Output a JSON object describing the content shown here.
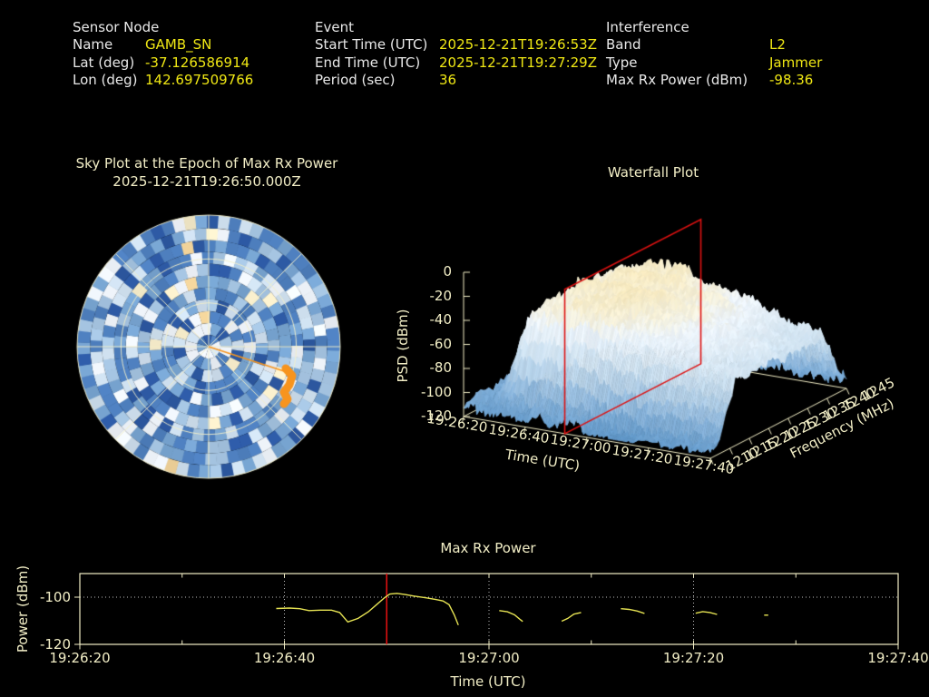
{
  "header": {
    "sensor": {
      "title": "Sensor Node",
      "rows": [
        {
          "label": "Name",
          "value": "GAMB_SN"
        },
        {
          "label": "Lat (deg)",
          "value": "-37.126586914"
        },
        {
          "label": "Lon (deg)",
          "value": "142.697509766"
        }
      ]
    },
    "event": {
      "title": "Event",
      "rows": [
        {
          "label": "Start Time (UTC)",
          "value": "2025-12-21T19:26:53Z"
        },
        {
          "label": "End Time (UTC)",
          "value": "2025-12-21T19:27:29Z"
        },
        {
          "label": "Period (sec)",
          "value": "36"
        }
      ]
    },
    "interference": {
      "title": "Interference",
      "rows": [
        {
          "label": "Band",
          "value": "L2"
        },
        {
          "label": "Type",
          "value": "Jammer"
        },
        {
          "label": "Max Rx Power (dBm)",
          "value": "-98.36"
        }
      ]
    }
  },
  "colors": {
    "label_text": "#e9e9e9",
    "value_text": "#efe714",
    "plot_text": "#f2eec6",
    "series_line": "#e6e353",
    "epoch_line": "#dd1111",
    "grid_dotted": "#c0c0c0"
  },
  "chart_data": [
    {
      "type": "heatmap",
      "projection": "polar",
      "title": "Sky Plot at the Epoch of Max Rx Power",
      "subtitle": "2025-12-21T19:26:50.000Z",
      "grid": {
        "rings": 3,
        "spoke_step_deg": 45
      },
      "palette": [
        "#2d59a3",
        "#4e7fbe",
        "#78a5d2",
        "#a5c4e1",
        "#cfe0ef",
        "#eef3f9",
        "#f6ecca"
      ],
      "marker": {
        "shape": "trace-from-center",
        "azimuth_deg": 108,
        "radius_frac": 0.62,
        "color": "#f7941e"
      },
      "note": "azimuth/elevation power mosaic, values unlabeled"
    },
    {
      "type": "surface",
      "title": "Waterfall Plot",
      "xlabel": "Time (UTC)",
      "ylabel": "Frequency (MHz)",
      "zlabel": "PSD (dBm)",
      "x_ticks": [
        "19:26:20",
        "19:26:40",
        "19:27:00",
        "19:27:20",
        "19:27:40"
      ],
      "y_ticks": [
        "1210",
        "1215",
        "1220",
        "1225",
        "1230",
        "1235",
        "1240",
        "1245"
      ],
      "z_ticks": [
        "0",
        "-20",
        "-40",
        "-60",
        "-80",
        "-100",
        "-120"
      ],
      "ylim": [
        1210,
        1245
      ],
      "zlim": [
        -120,
        0
      ],
      "slice_marker": {
        "time": "19:26:50",
        "time_frac": 0.41,
        "color": "#dd1111"
      }
    },
    {
      "type": "line",
      "title": "Max Rx Power",
      "xlabel": "Time (UTC)",
      "ylabel": "Power (dBm)",
      "x_ticks": [
        "19:26:20",
        "19:26:40",
        "19:27:00",
        "19:27:20",
        "19:27:40"
      ],
      "x_domain_sec": [
        0,
        80
      ],
      "y_ticks": [
        -100,
        -120
      ],
      "ylim": [
        -120,
        -90
      ],
      "gridlines": {
        "h_dotted_at": -100,
        "v_dotted_at_sec": [
          20,
          40,
          60
        ]
      },
      "epoch_line_sec": 30,
      "segments": [
        [
          [
            19.2,
            -104.8
          ],
          [
            20.5,
            -104.6
          ],
          [
            21.5,
            -104.9
          ],
          [
            22.4,
            -105.7
          ],
          [
            23.5,
            -105.5
          ],
          [
            24.6,
            -105.5
          ],
          [
            25.4,
            -106.5
          ],
          [
            26.2,
            -110.5
          ],
          [
            27.2,
            -109.0
          ],
          [
            28.2,
            -106.2
          ],
          [
            29.0,
            -103.2
          ],
          [
            29.8,
            -100.2
          ],
          [
            30.3,
            -98.7
          ],
          [
            31.0,
            -98.4
          ],
          [
            31.8,
            -98.9
          ],
          [
            32.6,
            -99.5
          ],
          [
            33.9,
            -100.3
          ],
          [
            34.8,
            -101.0
          ],
          [
            35.5,
            -101.6
          ],
          [
            36.1,
            -103.2
          ],
          [
            36.6,
            -107.5
          ],
          [
            37.0,
            -111.8
          ]
        ],
        [
          [
            41.0,
            -105.7
          ],
          [
            41.8,
            -106.2
          ],
          [
            42.5,
            -107.5
          ],
          [
            43.0,
            -109.3
          ],
          [
            43.3,
            -110.3
          ]
        ],
        [
          [
            47.1,
            -110.2
          ],
          [
            47.7,
            -109.0
          ],
          [
            48.3,
            -107.2
          ],
          [
            49.0,
            -106.5
          ]
        ],
        [
          [
            52.9,
            -104.9
          ],
          [
            53.7,
            -105.2
          ],
          [
            54.5,
            -105.9
          ],
          [
            55.2,
            -106.9
          ]
        ],
        [
          [
            60.2,
            -106.8
          ],
          [
            60.9,
            -106.1
          ],
          [
            61.6,
            -106.5
          ],
          [
            62.3,
            -107.3
          ]
        ],
        [
          [
            66.9,
            -107.6
          ],
          [
            67.3,
            -107.6
          ]
        ]
      ]
    }
  ]
}
